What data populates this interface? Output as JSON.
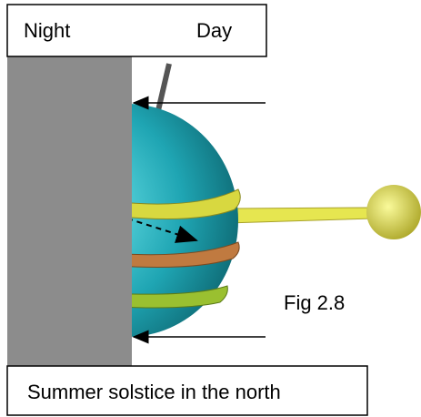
{
  "labels": {
    "night": "Night",
    "day": "Day",
    "figure": "Fig 2.8",
    "caption": "Summer solstice in the north"
  }
}
